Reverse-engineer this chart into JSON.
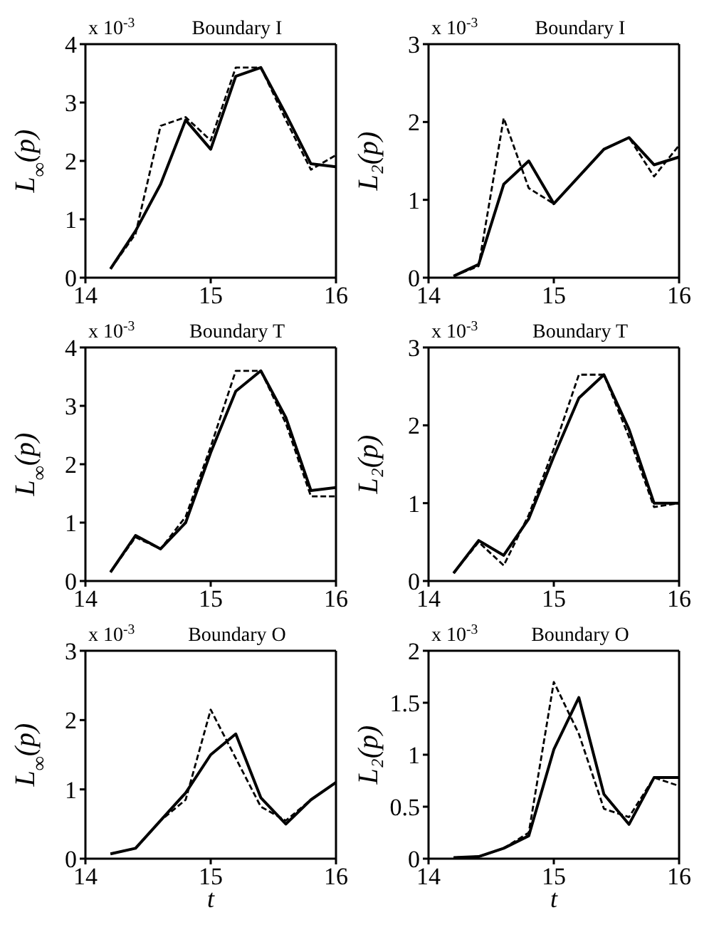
{
  "chart_data": [
    {
      "type": "line",
      "title": "Boundary I",
      "annotations": [
        "x 10$^{-3}$"
      ],
      "ylabel": "L$_{∞}$(p)",
      "x": [
        14.2,
        14.4,
        14.6,
        14.8,
        15.0,
        15.2,
        15.4,
        15.6,
        15.8,
        16.0
      ],
      "xlim": [
        14,
        16
      ],
      "xticks": [
        14,
        15,
        16
      ],
      "ylim": [
        0,
        4
      ],
      "yticks": [
        0,
        1,
        2,
        3,
        4
      ],
      "series": [
        {
          "color": "#000000",
          "line_style": "solid",
          "values": [
            0.15,
            0.8,
            1.6,
            2.7,
            2.2,
            3.45,
            3.6,
            2.8,
            1.95,
            1.9
          ]
        },
        {
          "color": "#000000",
          "line_style": "dashed",
          "values": [
            0.15,
            0.75,
            2.6,
            2.75,
            2.35,
            3.6,
            3.6,
            2.7,
            1.85,
            2.1
          ]
        }
      ]
    },
    {
      "type": "line",
      "title": "Boundary I",
      "annotations": [
        "x 10$^{-3}$"
      ],
      "ylabel": "L₂(p)",
      "x": [
        14.2,
        14.4,
        14.6,
        14.8,
        15.0,
        15.2,
        15.4,
        15.6,
        15.8,
        16.0
      ],
      "xlim": [
        14,
        16
      ],
      "xticks": [
        14,
        15,
        16
      ],
      "ylim": [
        0,
        3
      ],
      "yticks": [
        0,
        1,
        2,
        3
      ],
      "series": [
        {
          "color": "#000000",
          "line_style": "solid",
          "values": [
            0.02,
            0.17,
            1.2,
            1.5,
            0.95,
            1.3,
            1.65,
            1.8,
            1.45,
            1.55
          ]
        },
        {
          "color": "#000000",
          "line_style": "dashed",
          "values": [
            0.02,
            0.15,
            2.05,
            1.15,
            0.95,
            1.3,
            1.65,
            1.8,
            1.3,
            1.7
          ]
        }
      ]
    },
    {
      "type": "line",
      "title": "Boundary T",
      "annotations": [
        "x 10$^{-3}$"
      ],
      "ylabel": "L$_{∞}$(p)",
      "x": [
        14.2,
        14.4,
        14.6,
        14.8,
        15.0,
        15.2,
        15.4,
        15.6,
        15.8,
        16.0
      ],
      "xlim": [
        14,
        16
      ],
      "xticks": [
        14,
        15,
        16
      ],
      "ylim": [
        0,
        4
      ],
      "yticks": [
        0,
        1,
        2,
        3,
        4
      ],
      "series": [
        {
          "color": "#000000",
          "line_style": "solid",
          "values": [
            0.15,
            0.78,
            0.55,
            1.0,
            2.2,
            3.25,
            3.6,
            2.8,
            1.55,
            1.6
          ]
        },
        {
          "color": "#000000",
          "line_style": "dashed",
          "values": [
            0.15,
            0.75,
            0.55,
            1.1,
            2.3,
            3.6,
            3.6,
            2.7,
            1.45,
            1.45
          ]
        }
      ]
    },
    {
      "type": "line",
      "title": "Boundary T",
      "annotations": [
        "x 10$^{-3}$"
      ],
      "ylabel": "L₂(p)",
      "x": [
        14.2,
        14.4,
        14.6,
        14.8,
        15.0,
        15.2,
        15.4,
        15.6,
        15.8,
        16.0
      ],
      "xlim": [
        14,
        16
      ],
      "xticks": [
        14,
        15,
        16
      ],
      "ylim": [
        0,
        3
      ],
      "yticks": [
        0,
        1,
        2,
        3
      ],
      "series": [
        {
          "color": "#000000",
          "line_style": "solid",
          "values": [
            0.1,
            0.52,
            0.33,
            0.8,
            1.6,
            2.35,
            2.65,
            1.95,
            1.0,
            1.0
          ]
        },
        {
          "color": "#000000",
          "line_style": "dashed",
          "values": [
            0.1,
            0.5,
            0.2,
            0.85,
            1.7,
            2.65,
            2.65,
            1.85,
            0.95,
            1.0
          ]
        }
      ]
    },
    {
      "type": "line",
      "title": "Boundary O",
      "annotations": [
        "x 10$^{-3}$"
      ],
      "xlabel": "t",
      "ylabel": "L$_{∞}$(p)",
      "x": [
        14.2,
        14.4,
        14.6,
        14.8,
        15.0,
        15.2,
        15.4,
        15.6,
        15.8,
        16.0
      ],
      "xlim": [
        14,
        16
      ],
      "xticks": [
        14,
        15,
        16
      ],
      "ylim": [
        0,
        3
      ],
      "yticks": [
        0,
        1,
        2,
        3
      ],
      "series": [
        {
          "color": "#000000",
          "line_style": "solid",
          "values": [
            0.07,
            0.15,
            0.55,
            0.95,
            1.5,
            1.8,
            0.88,
            0.5,
            0.85,
            1.1
          ]
        },
        {
          "color": "#000000",
          "line_style": "dashed",
          "values": [
            0.07,
            0.15,
            0.55,
            0.85,
            2.15,
            1.45,
            0.75,
            0.55,
            0.85,
            1.1
          ]
        }
      ]
    },
    {
      "type": "line",
      "title": "Boundary O",
      "annotations": [
        "x 10$^{-3}$"
      ],
      "xlabel": "t",
      "ylabel": "L₂(p)",
      "x": [
        14.2,
        14.4,
        14.6,
        14.8,
        15.0,
        15.2,
        15.4,
        15.6,
        15.8,
        16.0
      ],
      "xlim": [
        14,
        16
      ],
      "xticks": [
        14,
        15,
        16
      ],
      "ylim": [
        0,
        2
      ],
      "yticks": [
        0,
        0.5,
        1,
        1.5,
        2
      ],
      "series": [
        {
          "color": "#000000",
          "line_style": "solid",
          "values": [
            0.01,
            0.02,
            0.1,
            0.22,
            1.05,
            1.55,
            0.62,
            0.33,
            0.78,
            0.78
          ]
        },
        {
          "color": "#000000",
          "line_style": "dashed",
          "values": [
            0.01,
            0.02,
            0.1,
            0.25,
            1.7,
            1.2,
            0.48,
            0.4,
            0.78,
            0.7
          ]
        }
      ]
    }
  ]
}
